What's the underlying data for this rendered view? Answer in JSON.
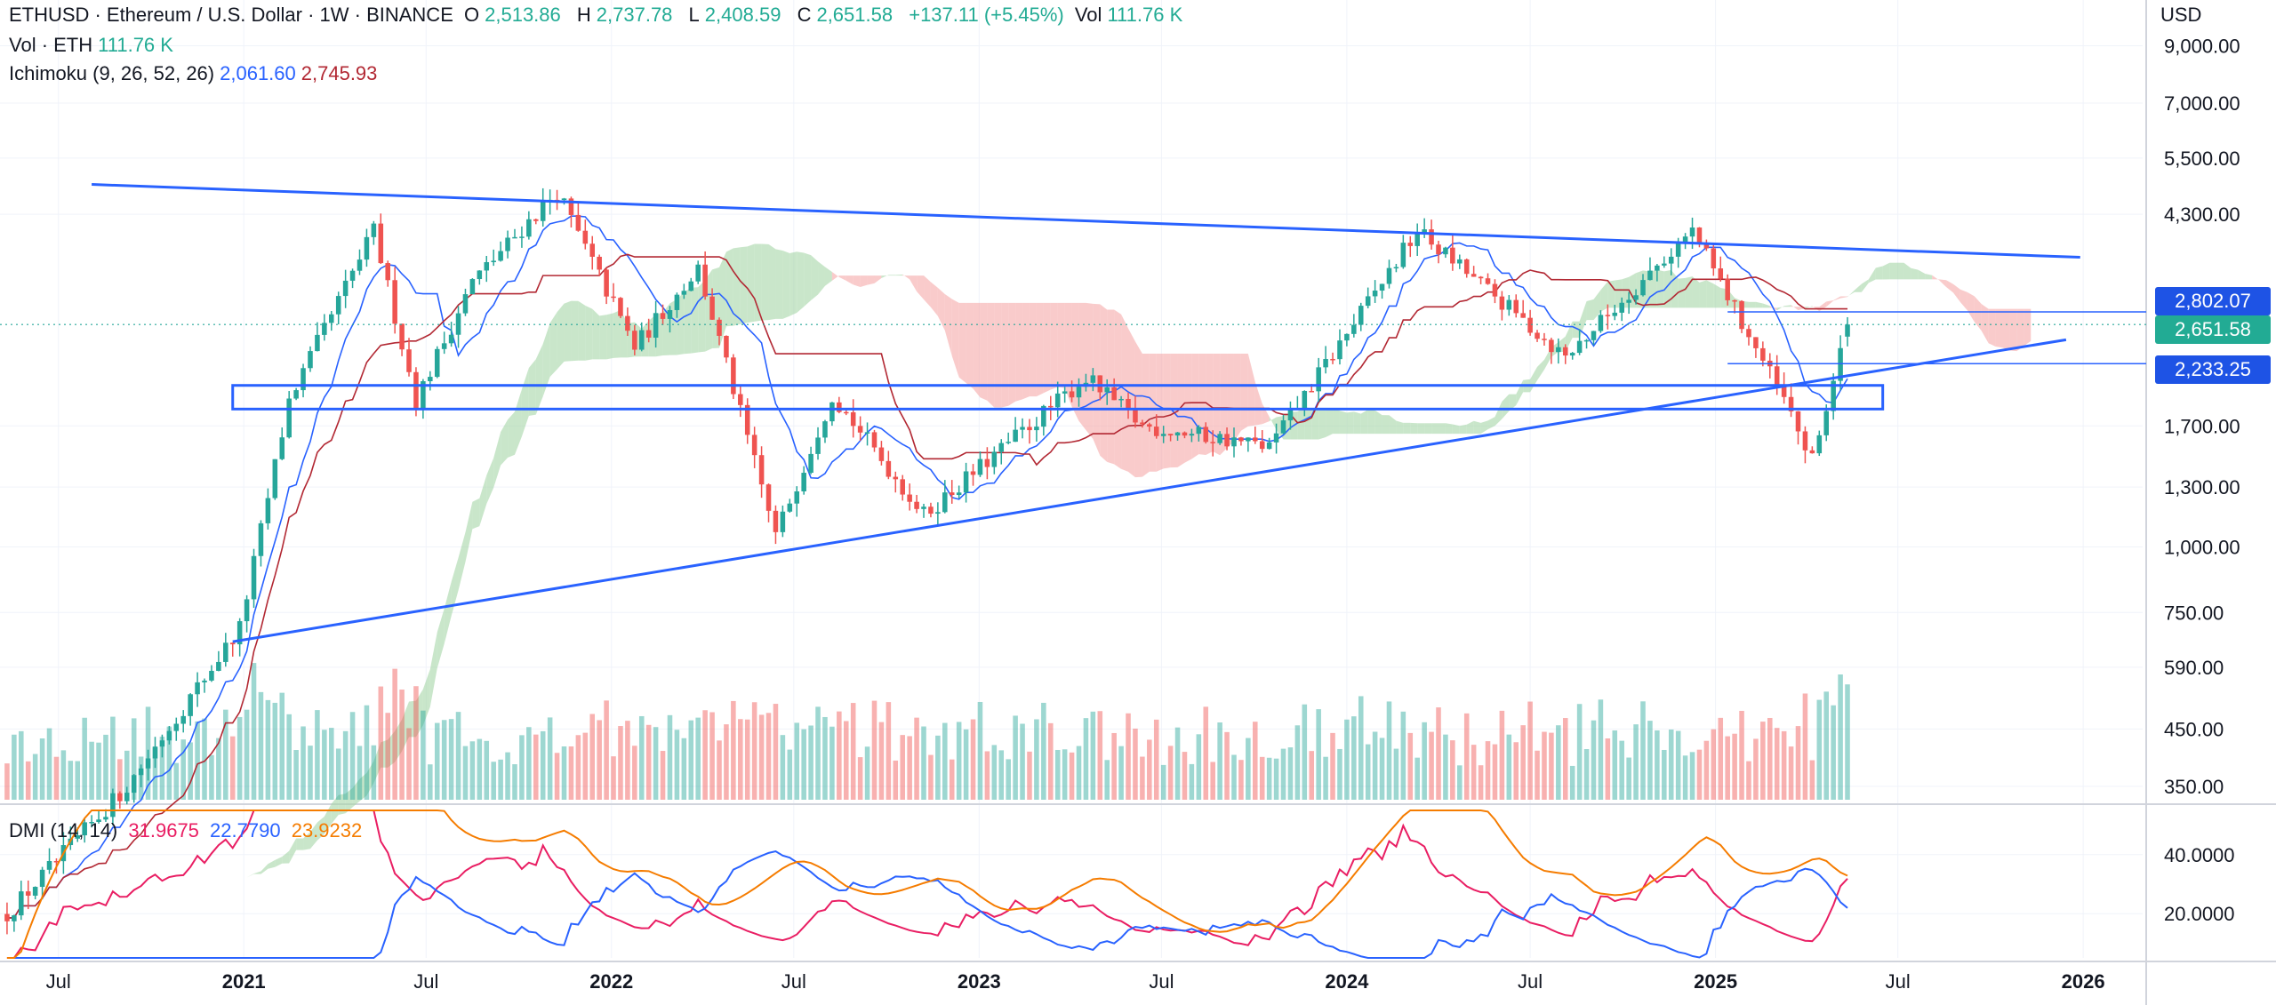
{
  "header": {
    "symbol": "ETHUSD",
    "description": "· Ethereum / U.S. Dollar · 1W · BINANCE",
    "o_label": "O",
    "o_value": "2,513.86",
    "h_label": "H",
    "h_value": "2,737.78",
    "l_label": "L",
    "l_value": "2,408.59",
    "c_label": "C",
    "c_value": "2,651.58",
    "change": "+137.11 (+5.45%)",
    "vol_label": "Vol",
    "vol_value": "111.76 K",
    "vol_row_label": "Vol · ETH",
    "vol_row_value": "111.76 K",
    "ichimoku_label": "Ichimoku (9, 26, 52, 26)",
    "ichimoku_v1": "2,061.60",
    "ichimoku_v2": "2,745.93"
  },
  "dmi": {
    "label": "DMI (14, 14)",
    "v1": "31.9675",
    "v2": "22.7790",
    "v3": "23.9232",
    "colors": {
      "plus": "#e91e63",
      "minus": "#2962ff",
      "adx": "#f57c00"
    }
  },
  "price_axis": {
    "currency": "USD",
    "ticks": [
      "9,000.00",
      "7,000.00",
      "5,500.00",
      "4,300.00",
      "1,700.00",
      "1,300.00",
      "1,000.00",
      "750.00",
      "590.00",
      "450.00",
      "350.00"
    ],
    "tags": [
      {
        "value": "2,802.07",
        "color": "#1e53e5"
      },
      {
        "value": "2,651.58",
        "color": "#22ab94"
      },
      {
        "value": "2,233.25",
        "color": "#1e53e5"
      }
    ]
  },
  "dmi_axis": {
    "ticks": [
      "40.0000",
      "20.0000"
    ]
  },
  "time_axis": {
    "labels": [
      "Jul",
      "2021",
      "Jul",
      "2022",
      "Jul",
      "2023",
      "Jul",
      "2024",
      "Jul",
      "2025",
      "Jul",
      "2026"
    ]
  },
  "colors": {
    "up": "#26a69a",
    "down": "#ef5350",
    "tenkan": "#2962ff",
    "kijun": "#b22833",
    "cloud_bull": "#a5d6a7",
    "cloud_bear": "#f5a9a9",
    "trend": "#2962ff"
  },
  "chart_data": {
    "type": "candlestick",
    "interval": "1W",
    "y_scale": "log",
    "price_ylim": [
      330,
      11000
    ],
    "dmi_ylim": [
      5,
      55
    ],
    "x_range": [
      "2020-05-04",
      "2026-03-01"
    ],
    "key_points": [
      {
        "date": "2020-05-11",
        "price": 200
      },
      {
        "date": "2020-09-07",
        "price": 350
      },
      {
        "date": "2020-12-28",
        "price": 700
      },
      {
        "date": "2021-02-15",
        "price": 1900
      },
      {
        "date": "2021-05-10",
        "price": 4000
      },
      {
        "date": "2021-06-21",
        "price": 1900
      },
      {
        "date": "2021-08-16",
        "price": 3200
      },
      {
        "date": "2021-11-08",
        "price": 4750
      },
      {
        "date": "2022-01-24",
        "price": 2400
      },
      {
        "date": "2022-03-28",
        "price": 3400
      },
      {
        "date": "2022-06-13",
        "price": 1050
      },
      {
        "date": "2022-08-08",
        "price": 1950
      },
      {
        "date": "2022-11-07",
        "price": 1150
      },
      {
        "date": "2023-04-17",
        "price": 2100
      },
      {
        "date": "2023-06-12",
        "price": 1700
      },
      {
        "date": "2023-10-16",
        "price": 1550
      },
      {
        "date": "2024-03-11",
        "price": 4000
      },
      {
        "date": "2024-08-05",
        "price": 2300
      },
      {
        "date": "2024-12-09",
        "price": 4000
      },
      {
        "date": "2025-03-10",
        "price": 1900
      },
      {
        "date": "2025-04-07",
        "price": 1450
      },
      {
        "date": "2025-05-12",
        "price": 2651.58
      }
    ],
    "trendlines": [
      {
        "points": [
          {
            "date": "2020-08-03",
            "price": 4900
          },
          {
            "date": "2025-12-29",
            "price": 3560
          }
        ]
      },
      {
        "points": [
          {
            "date": "2020-12-21",
            "price": 660
          },
          {
            "date": "2025-12-15",
            "price": 2480
          }
        ]
      }
    ],
    "zone": {
      "date_start": "2020-12-21",
      "date_end": "2025-06-16",
      "price_low": 1830,
      "price_high": 2030
    },
    "horizontal_lines": [
      {
        "price": 2802.07
      },
      {
        "price": 2233.25
      }
    ]
  }
}
